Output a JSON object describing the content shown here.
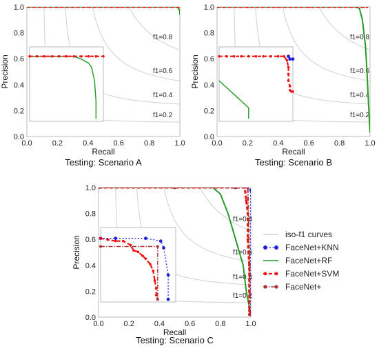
{
  "colors": {
    "knn": "#2222dd",
    "rf": "#229922",
    "svm": "#ee1111",
    "facenet": "#b03030",
    "iso": "#d0d0d0",
    "frame": "#bbbbbb"
  },
  "chart_data": [
    {
      "type": "line",
      "caption": "Testing: Scenario A",
      "xlabel": "Recall",
      "ylabel": "Precision",
      "xlim": [
        0,
        1
      ],
      "ylim": [
        0,
        1
      ],
      "xticks": [
        "0.0",
        "0.2",
        "0.4",
        "0.6",
        "0.8",
        "1.0"
      ],
      "yticks": [
        "0.0",
        "0.2",
        "0.4",
        "0.6",
        "0.8",
        "1.0"
      ],
      "iso_f1": [
        "f1=0.2",
        "f1=0.4",
        "f1=0.6",
        "f1=0.8"
      ],
      "series": [
        {
          "key": "rf",
          "x": [
            0.0,
            0.98,
            0.99,
            1.0,
            1.0
          ],
          "y": [
            1.0,
            1.0,
            0.99,
            0.97,
            0.94
          ]
        },
        {
          "key": "svm",
          "x": [
            0.0,
            0.2,
            0.4,
            0.6,
            0.8,
            0.99
          ],
          "y": [
            1.0,
            1.0,
            1.0,
            1.0,
            1.0,
            1.0
          ]
        }
      ],
      "inset": {
        "series": [
          {
            "key": "rf",
            "x": [
              0.0,
              0.25,
              0.3,
              0.35,
              0.4,
              0.42,
              0.44,
              0.45,
              0.45
            ],
            "y": [
              0.58,
              0.58,
              0.58,
              0.56,
              0.53,
              0.5,
              0.4,
              0.25,
              0.12
            ]
          },
          {
            "key": "svm",
            "x": [
              0.0,
              0.05,
              0.1,
              0.15,
              0.2,
              0.25,
              0.3,
              0.35,
              0.4,
              0.45,
              0.5
            ],
            "y": [
              0.58,
              0.58,
              0.58,
              0.58,
              0.58,
              0.58,
              0.58,
              0.58,
              0.58,
              0.58,
              0.58
            ]
          }
        ]
      }
    },
    {
      "type": "line",
      "caption": "Testing: Scenario B",
      "xlabel": "Recall",
      "ylabel": "Precision",
      "xlim": [
        0,
        1
      ],
      "ylim": [
        0,
        1
      ],
      "xticks": [
        "0.0",
        "0.2",
        "0.4",
        "0.6",
        "0.8",
        "1.0"
      ],
      "yticks": [
        "0.0",
        "0.2",
        "0.4",
        "0.6",
        "0.8",
        "1.0"
      ],
      "iso_f1": [
        "f1=0.2",
        "f1=0.4",
        "f1=0.6",
        "f1=0.8"
      ],
      "series": [
        {
          "key": "rf",
          "x": [
            0.0,
            0.9,
            0.93,
            0.95,
            0.97,
            0.98,
            0.99,
            1.0
          ],
          "y": [
            1.0,
            1.0,
            0.99,
            0.9,
            0.7,
            0.5,
            0.25,
            0.03
          ]
        },
        {
          "key": "svm",
          "x": [
            0.0,
            0.2,
            0.4,
            0.6,
            0.8,
            0.96,
            0.98
          ],
          "y": [
            1.0,
            1.0,
            1.0,
            1.0,
            1.0,
            1.0,
            1.0
          ]
        }
      ],
      "inset": {
        "series": [
          {
            "key": "rf",
            "x": [
              0.0,
              0.1,
              0.2,
              0.2
            ],
            "y": [
              0.4,
              0.3,
              0.2,
              0.12
            ]
          },
          {
            "key": "svm",
            "x": [
              0.0,
              0.05,
              0.1,
              0.15,
              0.2,
              0.25,
              0.3,
              0.35,
              0.4,
              0.44,
              0.46,
              0.47,
              0.47,
              0.47,
              0.48,
              0.48,
              0.49,
              0.5
            ],
            "y": [
              0.58,
              0.58,
              0.58,
              0.58,
              0.58,
              0.58,
              0.58,
              0.58,
              0.58,
              0.58,
              0.55,
              0.5,
              0.45,
              0.4,
              0.36,
              0.33,
              0.32,
              0.32
            ]
          },
          {
            "key": "knn",
            "x": [
              0.47,
              0.48,
              0.5
            ],
            "y": [
              0.58,
              0.56,
              0.56
            ]
          }
        ]
      }
    },
    {
      "type": "line",
      "caption": "Testing: Scenario C",
      "xlabel": "Recall",
      "ylabel": "Precision",
      "xlim": [
        0,
        1
      ],
      "ylim": [
        0,
        1
      ],
      "xticks": [
        "0.0",
        "0.2",
        "0.4",
        "0.6",
        "0.8",
        "1.0"
      ],
      "yticks": [
        "0.0",
        "0.2",
        "0.4",
        "0.6",
        "0.8",
        "1.0"
      ],
      "iso_f1": [
        "f1=0.2",
        "f1=0.4",
        "f1=0.6",
        "f1=0.8"
      ],
      "legend_position": "right",
      "legend": [
        {
          "key": "iso",
          "label": "iso-f1 curves"
        },
        {
          "key": "knn",
          "label": "FaceNet+KNN"
        },
        {
          "key": "rf",
          "label": "FaceNet+RF"
        },
        {
          "key": "svm",
          "label": "FaceNet+SVM"
        },
        {
          "key": "facenet",
          "label": "FaceNet+"
        }
      ],
      "series": [
        {
          "key": "knn",
          "x": [
            0.0,
            0.5,
            0.9,
            0.98,
            1.0,
            1.0
          ],
          "y": [
            1.0,
            1.0,
            1.0,
            1.0,
            0.98,
            0.02
          ]
        },
        {
          "key": "rf",
          "x": [
            0.0,
            0.75,
            0.8,
            0.85,
            0.9,
            0.95,
            0.97,
            1.0
          ],
          "y": [
            1.0,
            1.0,
            0.95,
            0.8,
            0.6,
            0.4,
            0.2,
            0.02
          ]
        },
        {
          "key": "svm",
          "x": [
            0.0,
            0.5,
            0.96,
            0.97,
            0.98,
            0.98,
            0.99,
            0.99,
            0.99,
            1.0
          ],
          "y": [
            1.0,
            1.0,
            1.0,
            0.9,
            0.8,
            0.6,
            0.4,
            0.2,
            0.05,
            0.02
          ]
        },
        {
          "key": "facenet",
          "x": [
            0.0,
            0.5,
            0.98,
            0.99,
            0.99
          ],
          "y": [
            1.0,
            1.0,
            1.0,
            0.5,
            0.02
          ]
        }
      ],
      "inset": {
        "series": [
          {
            "key": "knn",
            "x": [
              0.0,
              0.1,
              0.3,
              0.4,
              0.42,
              0.45,
              0.45
            ],
            "y": [
              0.57,
              0.57,
              0.57,
              0.55,
              0.5,
              0.3,
              0.12
            ]
          },
          {
            "key": "svm",
            "x": [
              0.0,
              0.05,
              0.1,
              0.15,
              0.2,
              0.22,
              0.25,
              0.28,
              0.3,
              0.33,
              0.35,
              0.36,
              0.37,
              0.37,
              0.38
            ],
            "y": [
              0.57,
              0.56,
              0.55,
              0.55,
              0.52,
              0.48,
              0.47,
              0.44,
              0.42,
              0.38,
              0.33,
              0.26,
              0.2,
              0.15,
              0.12
            ]
          },
          {
            "key": "facenet",
            "x": [
              0.0,
              0.38,
              0.38
            ],
            "y": [
              0.51,
              0.51,
              0.12
            ]
          }
        ]
      }
    }
  ]
}
